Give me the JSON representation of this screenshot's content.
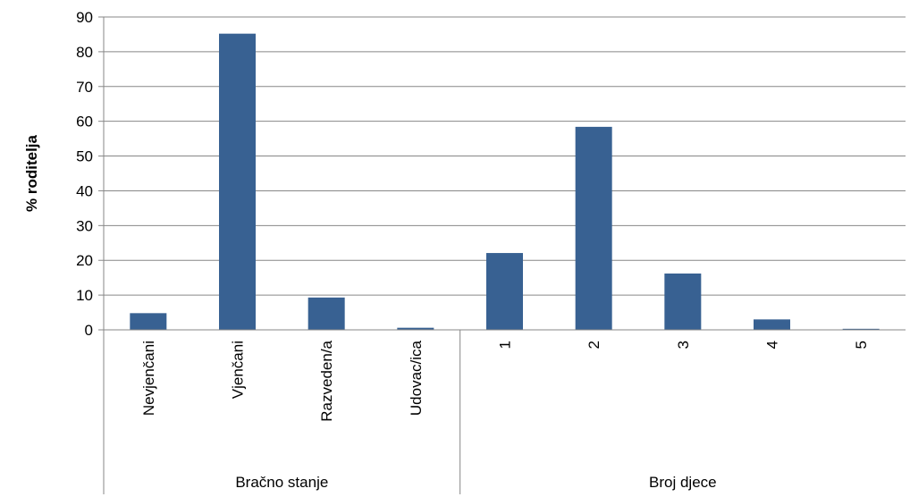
{
  "chart_data": {
    "type": "bar",
    "ylabel": "% roditelja",
    "ylim": [
      0,
      90
    ],
    "yticks": [
      0,
      10,
      20,
      30,
      40,
      50,
      60,
      70,
      80,
      90
    ],
    "grid": true,
    "bar_color": "#386192",
    "groups": [
      {
        "label": "Bračno stanje",
        "categories": [
          "Nevjenčani",
          "Vjenčani",
          "Razveden/a",
          "Udovac/ica"
        ]
      },
      {
        "label": "Broj djece",
        "categories": [
          "1",
          "2",
          "3",
          "4",
          "5"
        ]
      }
    ],
    "categories": [
      "Nevjenčani",
      "Vjenčani",
      "Razveden/a",
      "Udovac/ica",
      "1",
      "2",
      "3",
      "4",
      "5"
    ],
    "values": [
      4.8,
      85.2,
      9.3,
      0.6,
      22.1,
      58.4,
      16.2,
      3.0,
      0.3
    ]
  }
}
